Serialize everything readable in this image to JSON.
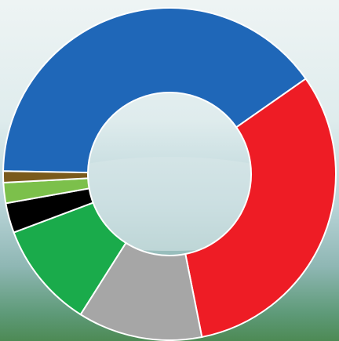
{
  "chart_data": {
    "type": "donut",
    "values": [
      40.0,
      31.6,
      12.1,
      10.3,
      2.9,
      2.0,
      1.1
    ],
    "colors": [
      "#1f67b8",
      "#ee1c25",
      "#a6a6a6",
      "#1aab4b",
      "#000000",
      "#7cc04b",
      "#7a5a1c"
    ],
    "start_angle": 271
  }
}
